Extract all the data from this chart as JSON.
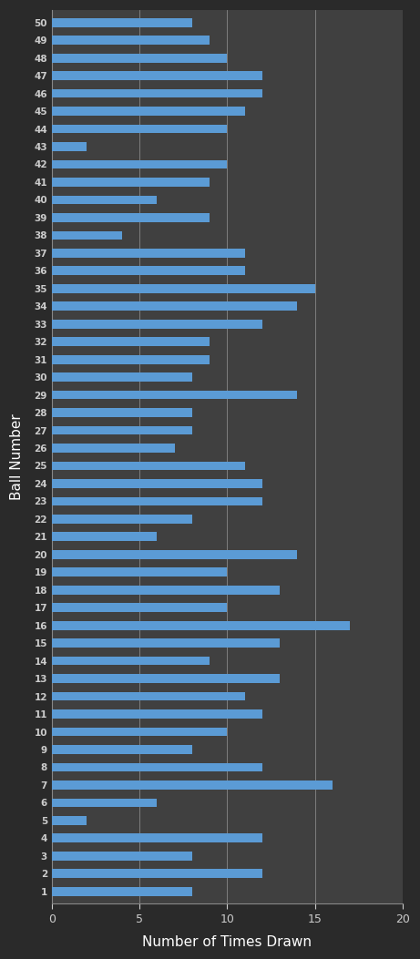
{
  "title": "",
  "xlabel": "Number of Times Drawn",
  "ylabel": "Ball Number",
  "plot_bg_color": "#404040",
  "outer_bg_color": "#2a2a2a",
  "bar_color": "#5b9bd5",
  "grid_color": "#888888",
  "text_color": "#ffffff",
  "tick_label_color": "#cccccc",
  "xlim": [
    0,
    20
  ],
  "xticks": [
    0,
    5,
    10,
    15,
    20
  ],
  "values": {
    "1": 8,
    "2": 12,
    "3": 8,
    "4": 12,
    "5": 2,
    "6": 6,
    "7": 16,
    "8": 12,
    "9": 8,
    "10": 10,
    "11": 12,
    "12": 11,
    "13": 13,
    "14": 9,
    "15": 13,
    "16": 17,
    "17": 10,
    "18": 13,
    "19": 10,
    "20": 14,
    "21": 6,
    "22": 8,
    "23": 12,
    "24": 12,
    "25": 11,
    "26": 7,
    "27": 8,
    "28": 8,
    "29": 14,
    "30": 8,
    "31": 9,
    "32": 9,
    "33": 12,
    "34": 14,
    "35": 15,
    "36": 11,
    "37": 11,
    "38": 4,
    "39": 9,
    "40": 6,
    "41": 9,
    "42": 10,
    "43": 2,
    "44": 10,
    "45": 11,
    "46": 12,
    "47": 12,
    "48": 10,
    "49": 9,
    "50": 8
  }
}
